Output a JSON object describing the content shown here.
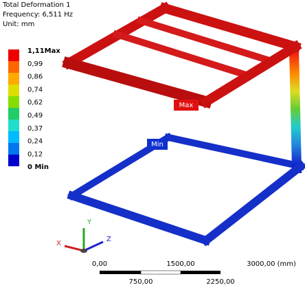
{
  "header": {
    "title": "Total Deformation 1",
    "frequency": "Frequency: 6,511 Hz",
    "unit": "Unit: mm"
  },
  "legend": {
    "labels": [
      "1,11Max",
      "0,99",
      "0,86",
      "0,74",
      "0,62",
      "0,49",
      "0,37",
      "0,24",
      "0,12",
      "0 Min"
    ]
  },
  "probes": {
    "max": "Max",
    "min": "Min"
  },
  "triad": {
    "x": "X",
    "y": "Y",
    "z": "Z"
  },
  "scale_bar": {
    "top": [
      "0,00",
      "1500,00",
      "3000,00 (mm)"
    ],
    "bottom": [
      "750,00",
      "2250,00"
    ]
  }
}
